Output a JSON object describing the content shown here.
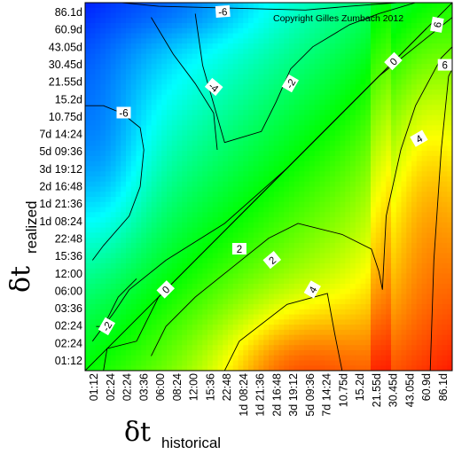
{
  "chart_data": {
    "type": "heatmap",
    "title": "",
    "copyright": "Copyright Gilles Zumbach 2012",
    "xlabel": {
      "main": "δt",
      "sub": "historical"
    },
    "ylabel": {
      "main": "δt",
      "sub": "realized"
    },
    "ticks": [
      "01:12",
      "02:24",
      "03:36",
      "06:00",
      "08:24",
      "12:00",
      "15:36",
      "22:48",
      "1d 08:24",
      "1d 21:36",
      "2d 16:48",
      "3d 19:12",
      "5d 09:36",
      "7d 14:24",
      "10.75d",
      "15.2d",
      "21.55d",
      "30.45d",
      "43.05d",
      "60.9d",
      "86.1d"
    ],
    "x_ticks": [
      "01:12",
      "02:24",
      "02:24",
      "03:36",
      "06:00",
      "08:24",
      "12:00",
      "15:36",
      "22:48",
      "1d 08:24",
      "1d 21:36",
      "2d 16:48",
      "3d 19:12",
      "5d 09:36",
      "7d 14:24",
      "10.75d",
      "15.2d",
      "21.55d",
      "30.45d",
      "43.05d",
      "60.9d",
      "86.1d"
    ],
    "y_ticks": [
      "01:12",
      "02:24",
      "02:24",
      "03:36",
      "06:00",
      "12:00",
      "15:36",
      "22:48",
      "1d 08:24",
      "1d 21:36",
      "2d 16:48",
      "3d 19:12",
      "5d 09:36",
      "7d 14:24",
      "10.75d",
      "15.2d",
      "21.55d",
      "30.45d",
      "43.05d",
      "60.9d",
      "86.1d"
    ],
    "contour_levels": [
      -6,
      -4,
      -2,
      0,
      2,
      4,
      6
    ],
    "contour_labels": [
      {
        "text": "-6",
        "level": -6
      },
      {
        "text": "-6",
        "level": -6
      },
      {
        "text": "-4",
        "level": -4
      },
      {
        "text": "-2",
        "level": -2
      },
      {
        "text": "-2",
        "level": -2
      },
      {
        "text": "0",
        "level": 0
      },
      {
        "text": "0",
        "level": 0
      },
      {
        "text": "2",
        "level": 2
      },
      {
        "text": "2",
        "level": 2
      },
      {
        "text": "4",
        "level": 4
      },
      {
        "text": "4",
        "level": 4
      },
      {
        "text": "6",
        "level": 6
      },
      {
        "text": "6",
        "level": 6
      }
    ],
    "colormap": [
      "#0000ff",
      "#00ffff",
      "#00ff00",
      "#ffff00",
      "#ff0000"
    ],
    "value_range": [
      -8,
      8
    ],
    "grid": false,
    "legend": "none"
  }
}
